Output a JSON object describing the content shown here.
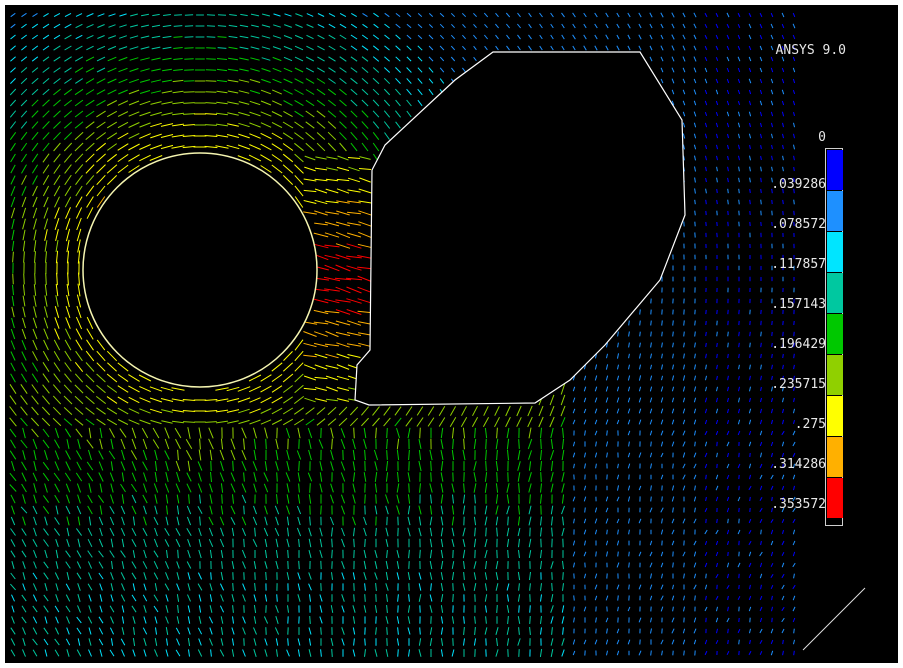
{
  "title": "ANSYS 9.0",
  "legend": {
    "values": [
      "0",
      ".039286",
      ".078572",
      ".117857",
      ".157143",
      ".196429",
      ".235715",
      ".275",
      ".314286",
      ".353572"
    ],
    "colors": [
      "#0000ff",
      "#1e90ff",
      "#00e5ff",
      "#00c8a0",
      "#00c800",
      "#90d000",
      "#ffff00",
      "#ffb000",
      "#ff0000"
    ]
  },
  "icons": {
    "plot": "vector-field-plot",
    "triad": "axis-triad-icon"
  }
}
